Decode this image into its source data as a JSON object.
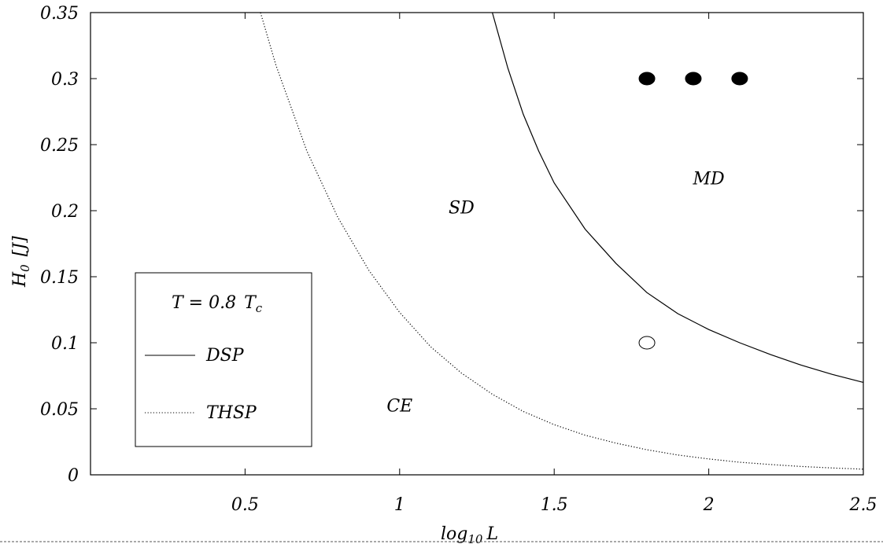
{
  "chart_data": {
    "type": "line",
    "xlabel": "log",
    "xlabel_sub": "10",
    "xlabel_var": "L",
    "ylabel": "H",
    "ylabel_sub": "0",
    "ylabel_unit": "[J]",
    "xlim": [
      0.0,
      2.5
    ],
    "ylim": [
      0.0,
      0.35
    ],
    "xticks": [
      {
        "value": 0.5,
        "label": "0.5"
      },
      {
        "value": 1.0,
        "label": "1"
      },
      {
        "value": 1.5,
        "label": "1.5"
      },
      {
        "value": 2.0,
        "label": "2"
      },
      {
        "value": 2.5,
        "label": "2.5"
      }
    ],
    "yticks": [
      {
        "value": 0.0,
        "label": "0"
      },
      {
        "value": 0.05,
        "label": "0.05"
      },
      {
        "value": 0.1,
        "label": "0.1"
      },
      {
        "value": 0.15,
        "label": "0.15"
      },
      {
        "value": 0.2,
        "label": "0.2"
      },
      {
        "value": 0.25,
        "label": "0.25"
      },
      {
        "value": 0.3,
        "label": "0.3"
      },
      {
        "value": 0.35,
        "label": "0.35"
      }
    ],
    "series": [
      {
        "name": "DSP",
        "style": "solid",
        "x": [
          1.3,
          1.35,
          1.4,
          1.45,
          1.5,
          1.6,
          1.7,
          1.8,
          1.9,
          2.0,
          2.1,
          2.2,
          2.3,
          2.4,
          2.5
        ],
        "y": [
          0.35,
          0.308,
          0.273,
          0.245,
          0.221,
          0.186,
          0.16,
          0.138,
          0.122,
          0.11,
          0.1,
          0.091,
          0.083,
          0.076,
          0.07
        ]
      },
      {
        "name": "THSP",
        "style": "dotted",
        "x": [
          0.55,
          0.6,
          0.7,
          0.8,
          0.9,
          1.0,
          1.1,
          1.2,
          1.3,
          1.4,
          1.5,
          1.6,
          1.7,
          1.8,
          1.9,
          2.0,
          2.1,
          2.2,
          2.3,
          2.4,
          2.5
        ],
        "y": [
          0.35,
          0.31,
          0.245,
          0.195,
          0.155,
          0.123,
          0.097,
          0.077,
          0.061,
          0.048,
          0.038,
          0.03,
          0.024,
          0.019,
          0.015,
          0.012,
          0.0095,
          0.0078,
          0.0063,
          0.0052,
          0.0043
        ]
      }
    ],
    "points": [
      {
        "x": 1.8,
        "y": 0.3,
        "filled": true
      },
      {
        "x": 1.95,
        "y": 0.3,
        "filled": true
      },
      {
        "x": 2.1,
        "y": 0.3,
        "filled": true
      },
      {
        "x": 1.8,
        "y": 0.1,
        "filled": false
      }
    ],
    "regions": [
      {
        "label": "MD",
        "x": 2.0,
        "y": 0.22
      },
      {
        "label": "SD",
        "x": 1.2,
        "y": 0.198
      },
      {
        "label": "CE",
        "x": 1.0,
        "y": 0.048
      }
    ],
    "legend": {
      "position": "bottom-left",
      "title_var": "T = 0.8",
      "title_sym": "T",
      "title_sub": "c",
      "entries": [
        {
          "label": "DSP",
          "style": "solid"
        },
        {
          "label": "THSP",
          "style": "dotted"
        }
      ]
    },
    "grid": false
  }
}
